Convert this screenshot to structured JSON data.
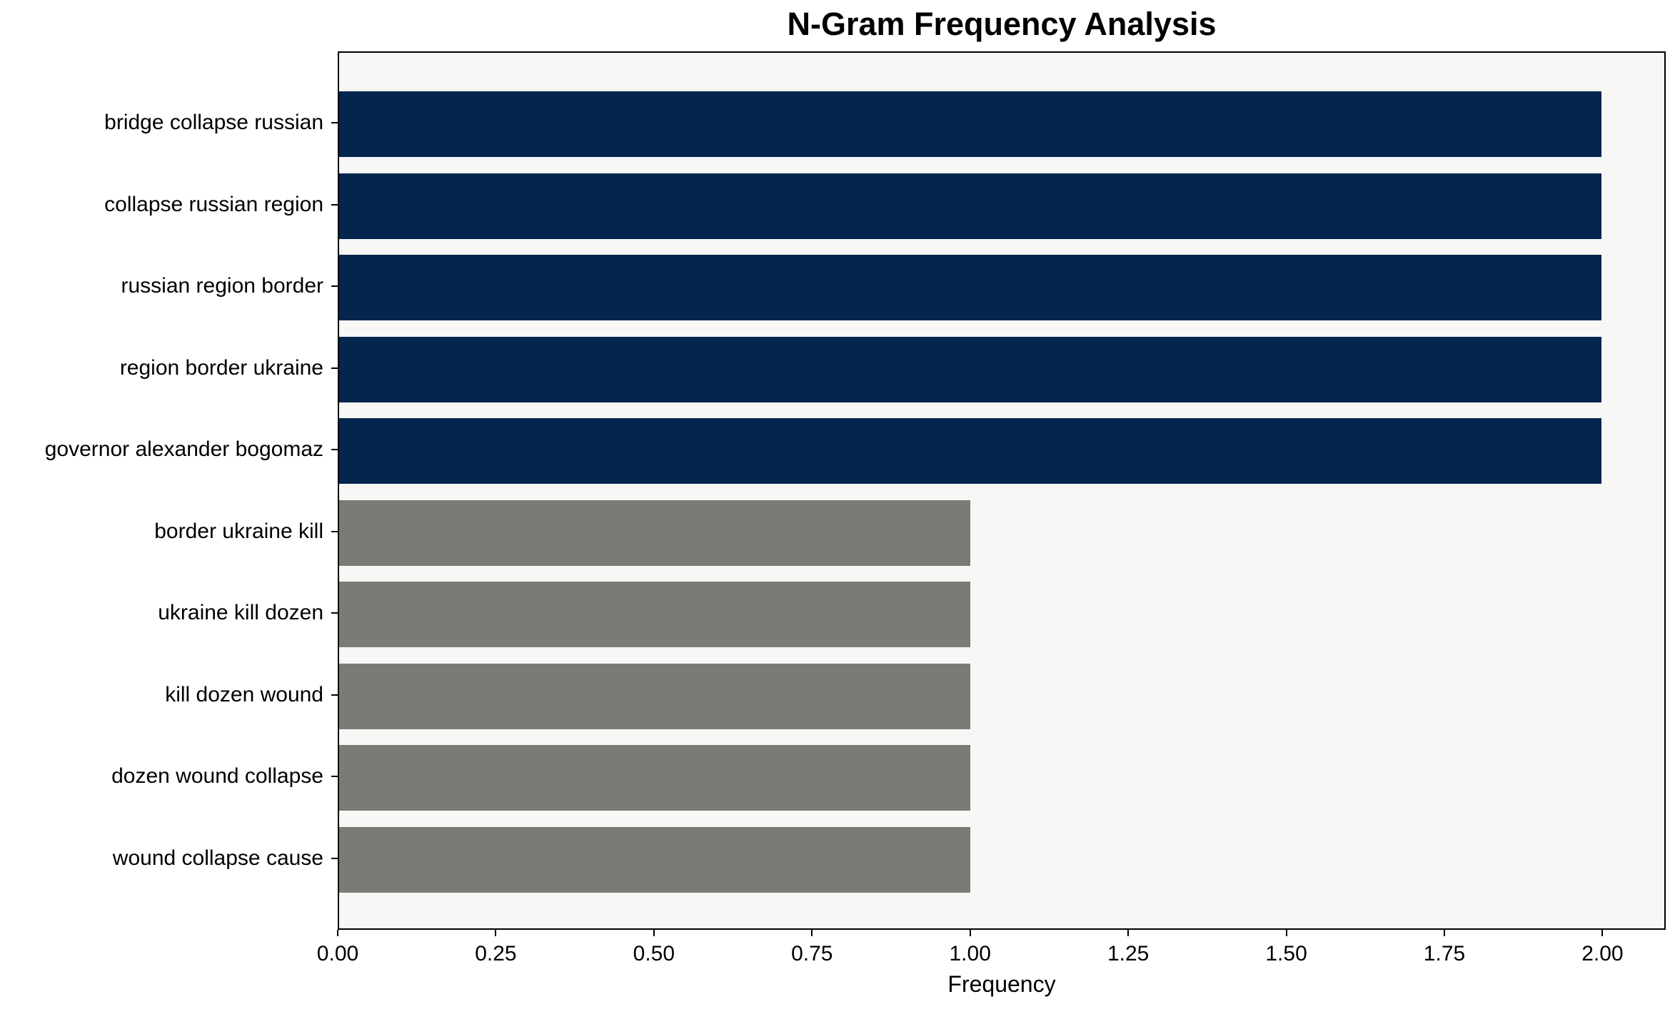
{
  "chart_data": {
    "type": "bar",
    "orientation": "horizontal",
    "title": "N-Gram Frequency Analysis",
    "xlabel": "Frequency",
    "ylabel": "",
    "categories": [
      "bridge collapse russian",
      "collapse russian region",
      "russian region border",
      "region border ukraine",
      "governor alexander bogomaz",
      "border ukraine kill",
      "ukraine kill dozen",
      "kill dozen wound",
      "dozen wound collapse",
      "wound collapse cause"
    ],
    "values": [
      2,
      2,
      2,
      2,
      2,
      1,
      1,
      1,
      1,
      1
    ],
    "bar_colors": [
      "#03254e",
      "#03254e",
      "#03254e",
      "#03254e",
      "#03254e",
      "#7b7a75",
      "#7b7a75",
      "#7b7a75",
      "#7b7a75",
      "#7b7a75"
    ],
    "xlim": [
      0,
      2.1
    ],
    "x_ticks": [
      0,
      0.25,
      0.5,
      0.75,
      1.0,
      1.25,
      1.5,
      1.75,
      2.0
    ],
    "x_tick_labels": [
      "0.00",
      "0.25",
      "0.50",
      "0.75",
      "1.00",
      "1.25",
      "1.50",
      "1.75",
      "2.00"
    ],
    "grid": false,
    "legend": false,
    "colors": {
      "high_frequency_bar": "#03254e",
      "low_frequency_bar": "#7b7a75",
      "plot_background": "#f7f7f6",
      "figure_background": "#ffffff",
      "axis_spine": "#000000",
      "text": "#000000"
    }
  }
}
